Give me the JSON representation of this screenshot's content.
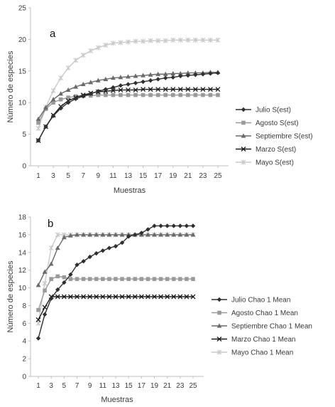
{
  "chart_data": [
    {
      "type": "line",
      "panel_label": "a",
      "xlabel": "Muestras",
      "ylabel": "Número de especies",
      "ylim": [
        0,
        25
      ],
      "yticks": [
        0,
        5,
        10,
        15,
        20,
        25
      ],
      "x": [
        1,
        2,
        3,
        4,
        5,
        6,
        7,
        8,
        9,
        10,
        11,
        12,
        13,
        14,
        15,
        16,
        17,
        18,
        19,
        20,
        21,
        22,
        23,
        24,
        25
      ],
      "xtick_labels": [
        "1",
        "3",
        "5",
        "7",
        "9",
        "11",
        "13",
        "15",
        "17",
        "19",
        "21",
        "23",
        "25"
      ],
      "legend_position": "right",
      "series": [
        {
          "name": "Julio S(est)",
          "color": "#2f2f2f",
          "marker": "diamond",
          "values": [
            4,
            6.2,
            7.9,
            9.1,
            10.0,
            10.6,
            11.0,
            11.4,
            11.8,
            12.1,
            12.4,
            12.7,
            12.9,
            13.1,
            13.3,
            13.5,
            13.7,
            13.9,
            14.0,
            14.2,
            14.3,
            14.4,
            14.5,
            14.6,
            14.7
          ]
        },
        {
          "name": "Agosto S(est)",
          "color": "#9a9a9a",
          "marker": "square",
          "values": [
            6.8,
            9.0,
            10.0,
            10.5,
            10.8,
            11.0,
            11.1,
            11.1,
            11.2,
            11.2,
            11.2,
            11.2,
            11.2,
            11.2,
            11.2,
            11.2,
            11.2,
            11.2,
            11.2,
            11.2,
            11.2,
            11.2,
            11.2,
            11.2,
            11.2
          ]
        },
        {
          "name": "Septiembre S(est)",
          "color": "#6a6a6a",
          "marker": "triangle",
          "values": [
            7.4,
            9.2,
            10.5,
            11.4,
            12.0,
            12.5,
            12.9,
            13.2,
            13.5,
            13.7,
            13.9,
            14.0,
            14.1,
            14.2,
            14.3,
            14.4,
            14.5,
            14.5,
            14.6,
            14.6,
            14.7,
            14.7,
            14.7,
            14.8,
            14.8
          ]
        },
        {
          "name": "Marzo S(est)",
          "color": "#1a1a1a",
          "marker": "x",
          "values": [
            4,
            6.2,
            8.0,
            9.4,
            10.3,
            10.8,
            11.2,
            11.5,
            11.7,
            11.8,
            11.9,
            12.0,
            12.0,
            12.0,
            12.1,
            12.1,
            12.1,
            12.1,
            12.1,
            12.1,
            12.1,
            12.1,
            12.1,
            12.1,
            12.1
          ]
        },
        {
          "name": "Mayo S(est)",
          "color": "#c9c9c9",
          "marker": "star",
          "values": [
            5.9,
            9.3,
            11.9,
            13.9,
            15.5,
            16.7,
            17.5,
            18.2,
            18.7,
            19.1,
            19.4,
            19.5,
            19.6,
            19.7,
            19.7,
            19.8,
            19.8,
            19.8,
            19.9,
            19.9,
            19.9,
            19.9,
            19.9,
            19.9,
            19.9
          ]
        }
      ]
    },
    {
      "type": "line",
      "panel_label": "b",
      "xlabel": "Muestras",
      "ylabel": "Número de especies",
      "ylim": [
        0,
        18
      ],
      "yticks": [
        0,
        2,
        4,
        6,
        8,
        10,
        12,
        14,
        16,
        18
      ],
      "x": [
        1,
        2,
        3,
        4,
        5,
        6,
        7,
        8,
        9,
        10,
        11,
        12,
        13,
        14,
        15,
        16,
        17,
        18,
        19,
        20,
        21,
        22,
        23,
        24,
        25
      ],
      "xtick_labels": [
        "1",
        "3",
        "5",
        "7",
        "9",
        "11",
        "13",
        "15",
        "17",
        "19",
        "21",
        "23",
        "25"
      ],
      "legend_position": "right",
      "series": [
        {
          "name": "Julio Chao 1 Mean",
          "color": "#2f2f2f",
          "marker": "diamond",
          "values": [
            4.3,
            7.0,
            8.8,
            9.8,
            10.6,
            11.5,
            12.6,
            13.0,
            13.5,
            13.9,
            14.2,
            14.5,
            14.7,
            15.1,
            15.8,
            16.0,
            16.2,
            16.6,
            17.0,
            17.0,
            17.0,
            17.0,
            17.0,
            17.0,
            17.0
          ]
        },
        {
          "name": "Agosto Chao 1 Mean",
          "color": "#9a9a9a",
          "marker": "square",
          "values": [
            7.5,
            9.7,
            11.0,
            11.3,
            11.2,
            11.0,
            11.0,
            11.0,
            11.0,
            11.0,
            11.0,
            11.0,
            11.0,
            11.0,
            11.0,
            11.0,
            11.0,
            11.0,
            11.0,
            11.0,
            11.0,
            11.0,
            11.0,
            11.0,
            11.0
          ]
        },
        {
          "name": "Septiembre Chao 1 Mean",
          "color": "#6a6a6a",
          "marker": "triangle",
          "values": [
            10.3,
            11.8,
            12.7,
            14.5,
            15.7,
            15.9,
            16.0,
            16.0,
            16.0,
            16.0,
            16.0,
            16.0,
            16.0,
            16.0,
            16.0,
            16.0,
            16.0,
            16.0,
            16.0,
            16.0,
            16.0,
            16.0,
            16.0,
            16.0,
            16.0
          ]
        },
        {
          "name": "Marzo Chao 1 Mean",
          "color": "#1a1a1a",
          "marker": "x",
          "values": [
            6.4,
            7.8,
            9.0,
            9.0,
            9.0,
            9.0,
            9.0,
            9.0,
            9.0,
            9.0,
            9.0,
            9.0,
            9.0,
            9.0,
            9.0,
            9.0,
            9.0,
            9.0,
            9.0,
            9.0,
            9.0,
            9.0,
            9.0,
            9.0,
            9.0
          ]
        },
        {
          "name": "Mayo Chao 1 Mean",
          "color": "#c9c9c9",
          "marker": "star",
          "values": [
            6.0,
            10.5,
            14.5,
            16.0,
            16.0,
            16.0,
            16.0,
            16.0,
            16.0,
            16.0,
            16.0,
            16.0,
            16.0,
            16.0,
            16.0,
            16.0,
            16.0,
            16.0,
            16.0,
            16.0,
            16.0,
            16.0,
            16.0,
            16.0,
            16.0
          ]
        }
      ]
    }
  ]
}
